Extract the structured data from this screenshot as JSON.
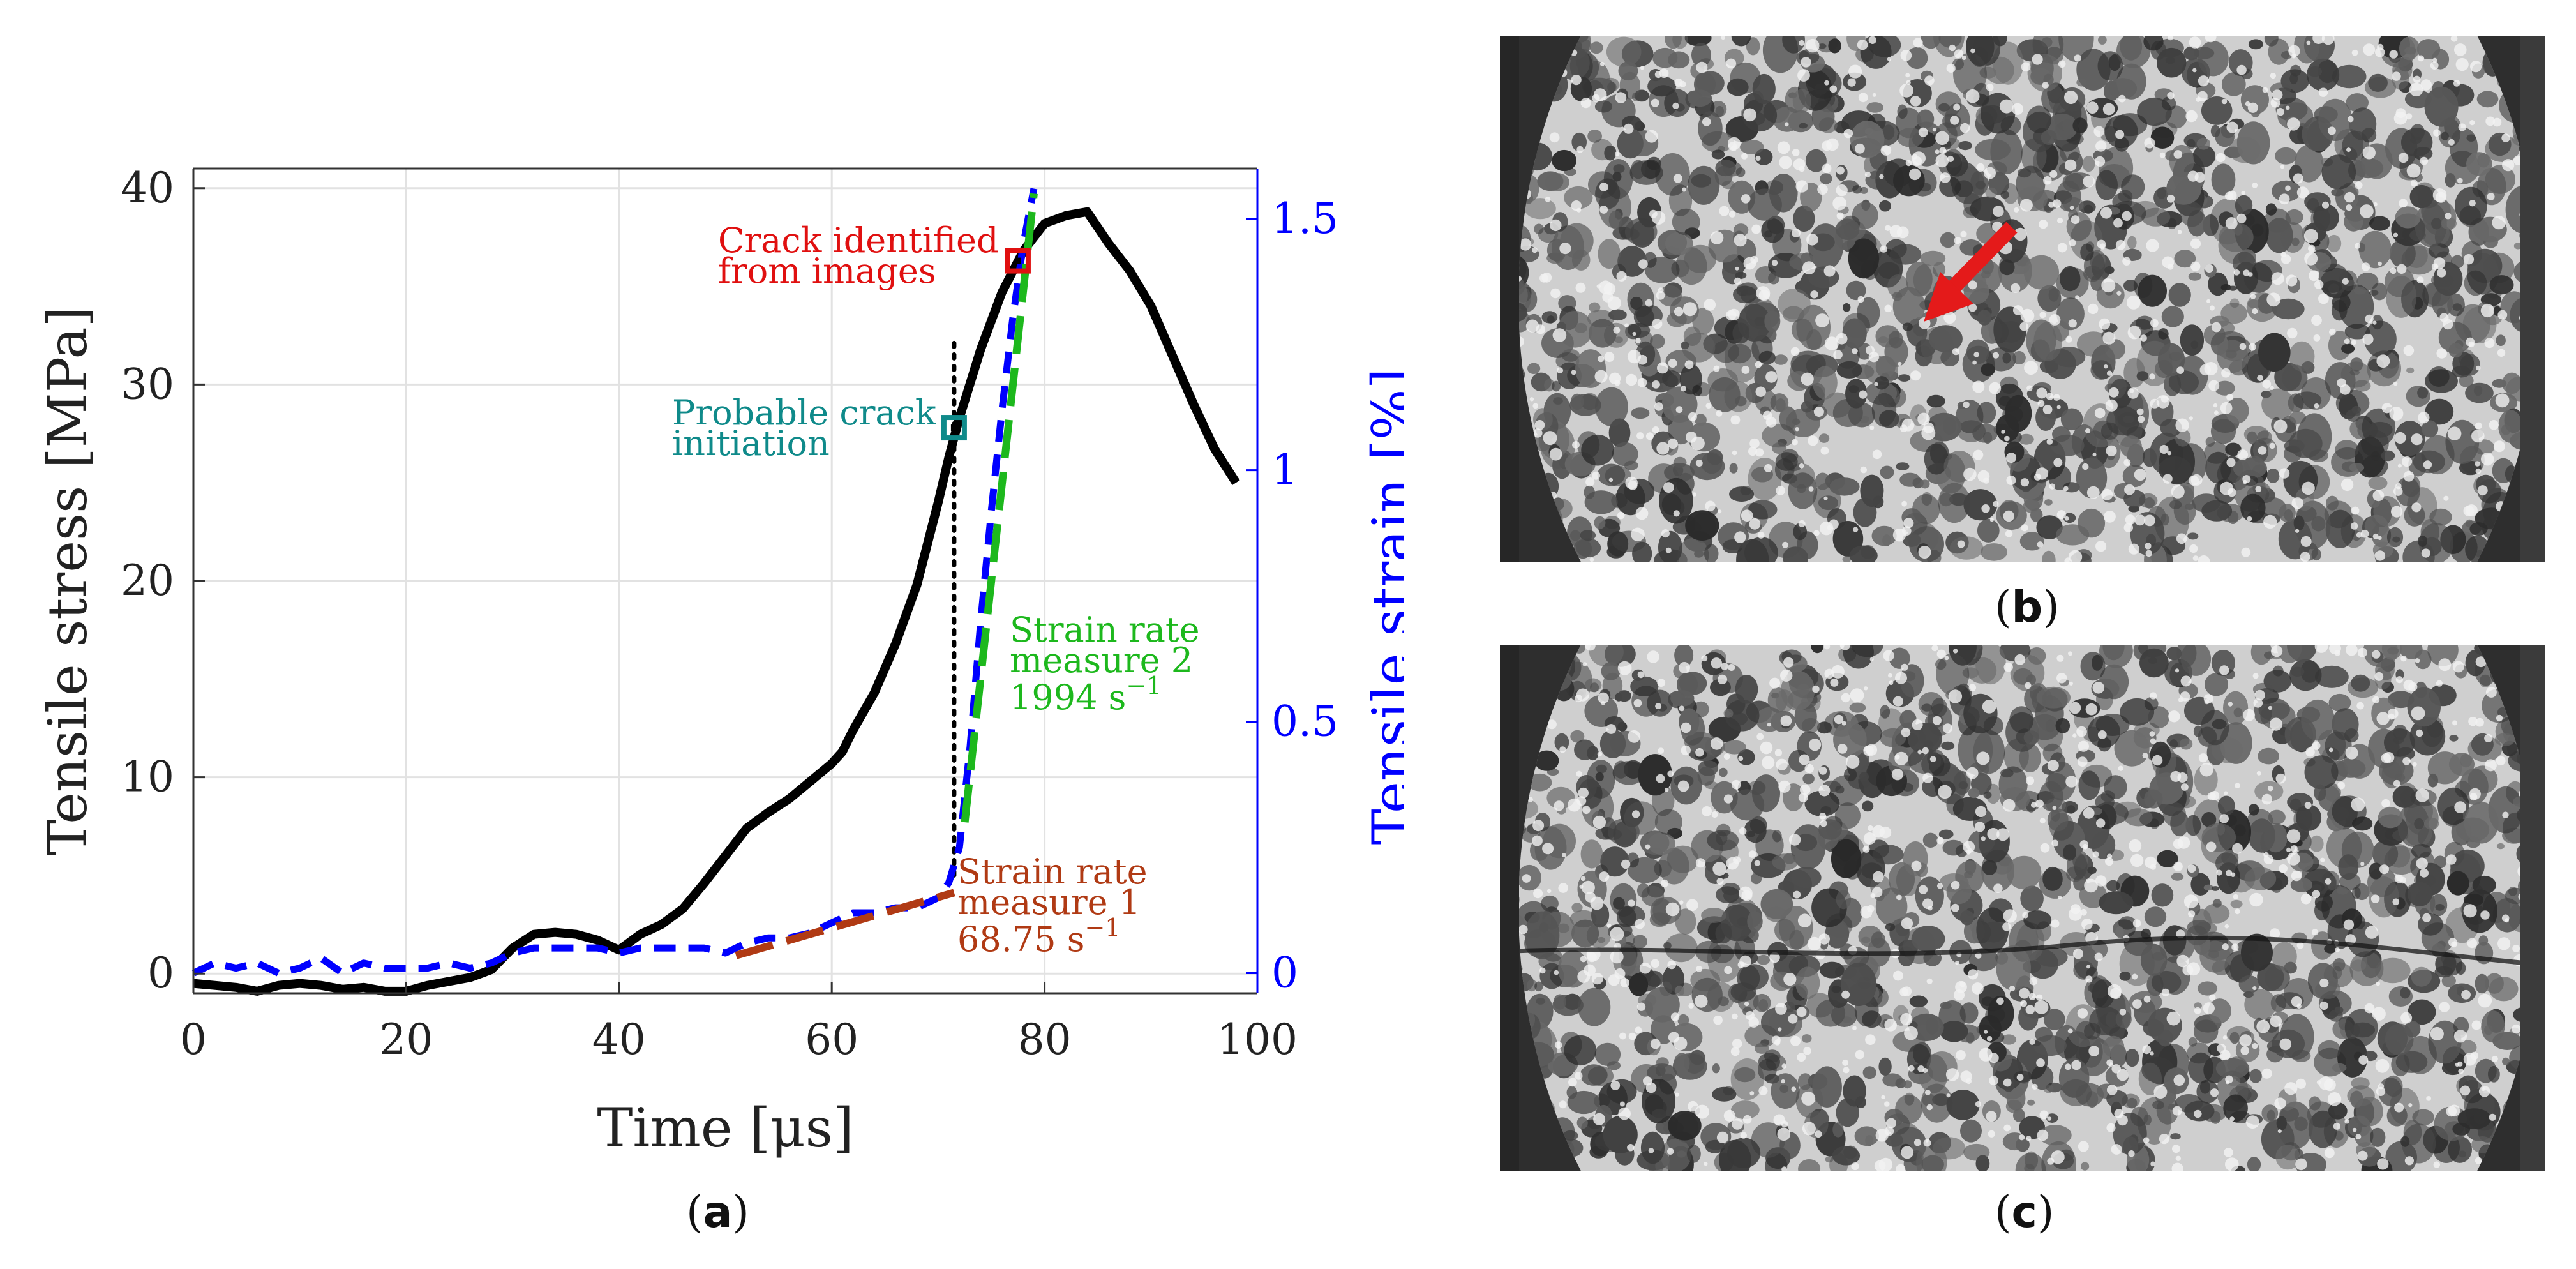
{
  "panels": {
    "a": {
      "open": "(",
      "letter": "a",
      "close": ")"
    },
    "b": {
      "open": "(",
      "letter": "b",
      "close": ")"
    },
    "c": {
      "open": "(",
      "letter": "c",
      "close": ")"
    }
  },
  "chart_data": {
    "type": "line",
    "title": "",
    "xlabel": "Time [μs]",
    "ylabel_left": "Tensile stress [MPa]",
    "ylabel_right": "Tensile strain [%]",
    "xlim": [
      0,
      100
    ],
    "ylim_left": [
      -1,
      41
    ],
    "ylim_right": [
      -0.04,
      1.6
    ],
    "xticks": [
      "0",
      "20",
      "40",
      "60",
      "80",
      "100"
    ],
    "yticks_left": [
      "0",
      "10",
      "20",
      "30",
      "40"
    ],
    "yticks_right": [
      "0",
      "0.5",
      "1",
      "1.5"
    ],
    "grid": true,
    "colors": {
      "stress": "#000000",
      "strain": "#0000ff",
      "fit1": "#b03a14",
      "fit2": "#1db81d",
      "crack": "#e01010",
      "initiation": "#0f8a8a"
    },
    "series": [
      {
        "axis": "left",
        "style": "solid",
        "color": "#000000",
        "x": [
          0,
          2,
          4,
          6,
          8,
          10,
          12,
          14,
          16,
          18,
          20,
          22,
          24,
          26,
          28,
          30,
          32,
          34,
          36,
          38,
          40,
          41,
          42,
          44,
          46,
          48,
          50,
          52,
          54,
          56,
          58,
          60,
          61,
          62,
          64,
          66,
          68,
          70,
          71,
          72,
          74,
          76,
          78,
          80,
          82,
          84,
          86,
          88,
          90,
          92,
          94,
          96,
          98
        ],
        "y": [
          -0.5,
          -0.6,
          -0.7,
          -0.9,
          -0.6,
          -0.5,
          -0.6,
          -0.8,
          -0.7,
          -0.9,
          -0.9,
          -0.6,
          -0.4,
          -0.2,
          0.2,
          1.3,
          2.0,
          2.1,
          2.0,
          1.7,
          1.2,
          1.6,
          2.0,
          2.5,
          3.3,
          4.6,
          6.0,
          7.4,
          8.2,
          8.9,
          9.8,
          10.7,
          11.3,
          12.4,
          14.3,
          16.8,
          19.8,
          24.0,
          26.3,
          28.3,
          31.8,
          34.7,
          36.8,
          38.2,
          38.6,
          38.8,
          37.2,
          35.8,
          34.0,
          31.5,
          29.0,
          26.7,
          25.0
        ]
      },
      {
        "axis": "right",
        "style": "dashed",
        "color": "#0000ff",
        "x": [
          0,
          2,
          4,
          6,
          8,
          10,
          12,
          14,
          16,
          18,
          20,
          22,
          24,
          26,
          28,
          30,
          32,
          34,
          36,
          38,
          40,
          42,
          44,
          46,
          48,
          50,
          52,
          54,
          56,
          58,
          60,
          62,
          64,
          66,
          68,
          70,
          71,
          72,
          73,
          74,
          75,
          76,
          77,
          78,
          79
        ],
        "y": [
          0.0,
          0.02,
          0.01,
          0.02,
          0.0,
          0.01,
          0.03,
          0.0,
          0.02,
          0.01,
          0.01,
          0.01,
          0.02,
          0.01,
          0.02,
          0.04,
          0.05,
          0.05,
          0.05,
          0.05,
          0.04,
          0.05,
          0.05,
          0.05,
          0.05,
          0.04,
          0.06,
          0.07,
          0.07,
          0.08,
          0.1,
          0.12,
          0.12,
          0.13,
          0.13,
          0.15,
          0.18,
          0.25,
          0.45,
          0.7,
          0.92,
          1.12,
          1.3,
          1.45,
          1.56
        ]
      },
      {
        "name": "Strain rate measure 1",
        "axis": "right",
        "style": "long-dash",
        "color": "#b03a14",
        "x": [
          51,
          71.5
        ],
        "y": [
          0.035,
          0.16
        ]
      },
      {
        "name": "Strain rate measure 2",
        "axis": "right",
        "style": "long-dash",
        "color": "#1db81d",
        "x": [
          72.5,
          79
        ],
        "y": [
          0.3,
          1.55
        ]
      }
    ],
    "markers": [
      {
        "name": "crack-identified",
        "x": 77.5,
        "y": 36.3,
        "axis": "left",
        "color": "#e01010"
      },
      {
        "name": "probable-initiation",
        "x": 71.5,
        "y": 27.8,
        "axis": "left",
        "color": "#0f8a8a"
      }
    ],
    "vline": {
      "x": 71.5,
      "y_from": 5,
      "y_to": 32.5,
      "axis": "left",
      "style": "dotted",
      "color": "#000000"
    },
    "annotations": [
      {
        "key": "crack",
        "lines": [
          "Crack identified",
          "from images"
        ],
        "color": "#e01010"
      },
      {
        "key": "initiation",
        "lines": [
          "Probable crack",
          "initiation"
        ],
        "color": "#0f8a8a"
      },
      {
        "key": "rate2",
        "lines": [
          "Strain rate",
          "measure 2",
          "1994 s"
        ],
        "sup": "−1",
        "color": "#1db81d"
      },
      {
        "key": "rate1",
        "lines": [
          "Strain rate",
          "measure 1",
          "68.75 s"
        ],
        "sup": "−1",
        "color": "#b03a14"
      }
    ]
  }
}
